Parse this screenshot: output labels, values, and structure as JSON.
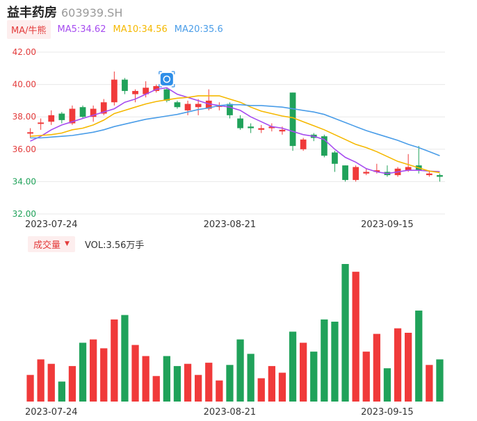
{
  "header": {
    "stock_name": "益丰药房",
    "stock_code": "603939.SH"
  },
  "ma_legend": {
    "badge_label": "MA/牛熊",
    "items": [
      {
        "label": "MA5:34.62",
        "color": "#a64cf0"
      },
      {
        "label": "MA10:34.56",
        "color": "#f5b800"
      },
      {
        "label": "MA20:35.6",
        "color": "#4a9de8"
      }
    ]
  },
  "volume_legend": {
    "badge_label": "成交量",
    "value_label": "VOL:3.56万手"
  },
  "colors": {
    "up": "#f03a3a",
    "down": "#20a25a",
    "grid": "#e8e8e8",
    "axis_text_up": "#e33b3b",
    "axis_text_down": "#20a25a"
  },
  "marker_icon": "flag-icon",
  "chart_data": {
    "type": "candlestick",
    "yticks": [
      "42.00",
      "40.00",
      "38.00",
      "36.00",
      "34.00",
      "32.00"
    ],
    "ylim": [
      32,
      42
    ],
    "xticks": [
      {
        "label": "2023-07-24",
        "index": 2
      },
      {
        "label": "2023-08-21",
        "index": 19
      },
      {
        "label": "2023-09-15",
        "index": 34
      }
    ],
    "candles": [
      {
        "o": 37.0,
        "c": 37.05,
        "h": 37.3,
        "l": 36.7
      },
      {
        "o": 37.6,
        "c": 37.65,
        "h": 37.9,
        "l": 37.2
      },
      {
        "o": 37.7,
        "c": 38.1,
        "h": 38.4,
        "l": 37.5
      },
      {
        "o": 38.2,
        "c": 37.8,
        "h": 38.3,
        "l": 37.6
      },
      {
        "o": 37.6,
        "c": 38.5,
        "h": 38.7,
        "l": 37.5
      },
      {
        "o": 38.6,
        "c": 38.0,
        "h": 38.7,
        "l": 37.9
      },
      {
        "o": 38.0,
        "c": 38.5,
        "h": 38.7,
        "l": 37.7
      },
      {
        "o": 38.2,
        "c": 38.9,
        "h": 39.1,
        "l": 38.1
      },
      {
        "o": 38.9,
        "c": 40.3,
        "h": 40.8,
        "l": 38.7
      },
      {
        "o": 40.3,
        "c": 39.6,
        "h": 40.4,
        "l": 39.4
      },
      {
        "o": 39.4,
        "c": 39.6,
        "h": 39.7,
        "l": 38.9
      },
      {
        "o": 39.4,
        "c": 39.8,
        "h": 40.2,
        "l": 39.2
      },
      {
        "o": 39.6,
        "c": 39.9,
        "h": 40.0,
        "l": 39.5
      },
      {
        "o": 39.7,
        "c": 39.0,
        "h": 39.8,
        "l": 38.9
      },
      {
        "o": 38.9,
        "c": 38.6,
        "h": 39.0,
        "l": 38.5
      },
      {
        "o": 38.4,
        "c": 38.8,
        "h": 39.0,
        "l": 38.1
      },
      {
        "o": 38.6,
        "c": 38.8,
        "h": 39.1,
        "l": 38.1
      },
      {
        "o": 38.5,
        "c": 39.0,
        "h": 39.7,
        "l": 38.4
      },
      {
        "o": 38.7,
        "c": 38.7,
        "h": 38.9,
        "l": 38.4
      },
      {
        "o": 38.8,
        "c": 38.1,
        "h": 38.9,
        "l": 37.9
      },
      {
        "o": 37.9,
        "c": 37.3,
        "h": 38.1,
        "l": 37.2
      },
      {
        "o": 37.4,
        "c": 37.3,
        "h": 37.6,
        "l": 37.0
      },
      {
        "o": 37.2,
        "c": 37.3,
        "h": 37.5,
        "l": 37.0
      },
      {
        "o": 37.3,
        "c": 37.4,
        "h": 37.6,
        "l": 37.1
      },
      {
        "o": 37.1,
        "c": 37.2,
        "h": 37.4,
        "l": 36.9
      },
      {
        "o": 39.5,
        "c": 36.2,
        "h": 39.5,
        "l": 35.9
      },
      {
        "o": 36.0,
        "c": 36.6,
        "h": 36.7,
        "l": 35.9
      },
      {
        "o": 36.9,
        "c": 36.7,
        "h": 37.0,
        "l": 36.5
      },
      {
        "o": 36.8,
        "c": 35.6,
        "h": 36.9,
        "l": 35.5
      },
      {
        "o": 35.8,
        "c": 35.1,
        "h": 35.9,
        "l": 34.6
      },
      {
        "o": 35.0,
        "c": 34.1,
        "h": 35.0,
        "l": 34.0
      },
      {
        "o": 34.1,
        "c": 34.9,
        "h": 35.0,
        "l": 34.0
      },
      {
        "o": 34.5,
        "c": 34.6,
        "h": 34.8,
        "l": 34.4
      },
      {
        "o": 34.6,
        "c": 34.7,
        "h": 35.1,
        "l": 34.5
      },
      {
        "o": 34.6,
        "c": 34.4,
        "h": 35.0,
        "l": 34.3
      },
      {
        "o": 34.4,
        "c": 34.8,
        "h": 34.9,
        "l": 34.3
      },
      {
        "o": 34.7,
        "c": 34.9,
        "h": 35.7,
        "l": 34.6
      },
      {
        "o": 35.0,
        "c": 34.7,
        "h": 36.2,
        "l": 34.5
      },
      {
        "o": 34.4,
        "c": 34.5,
        "h": 34.7,
        "l": 34.3
      },
      {
        "o": 34.4,
        "c": 34.3,
        "h": 34.5,
        "l": 34.0
      }
    ],
    "series": [
      {
        "name": "MA5",
        "color": "#a64cf0",
        "values": [
          36.5,
          36.8,
          37.2,
          37.5,
          37.7,
          37.9,
          38.1,
          38.3,
          38.5,
          38.9,
          39.1,
          39.4,
          39.7,
          39.8,
          39.4,
          39.2,
          39.0,
          38.8,
          38.7,
          38.6,
          38.4,
          38.0,
          37.7,
          37.4,
          37.3,
          37.1,
          36.9,
          36.8,
          36.6,
          36.0,
          35.5,
          35.2,
          34.8,
          34.6,
          34.5,
          34.6,
          34.7,
          34.7,
          34.65,
          34.62
        ]
      },
      {
        "name": "MA10",
        "color": "#f5b800",
        "values": [
          36.8,
          36.85,
          36.9,
          37.0,
          37.2,
          37.3,
          37.5,
          37.8,
          38.2,
          38.4,
          38.6,
          38.8,
          38.95,
          39.05,
          39.15,
          39.2,
          39.3,
          39.3,
          39.3,
          39.1,
          38.9,
          38.6,
          38.35,
          38.2,
          38.05,
          37.95,
          37.7,
          37.45,
          37.2,
          36.9,
          36.6,
          36.3,
          36.1,
          35.85,
          35.55,
          35.25,
          35.05,
          34.85,
          34.65,
          34.56
        ]
      },
      {
        "name": "MA20",
        "color": "#4a9de8",
        "values": [
          36.7,
          36.7,
          36.75,
          36.8,
          36.85,
          36.95,
          37.05,
          37.2,
          37.4,
          37.55,
          37.7,
          37.85,
          37.95,
          38.05,
          38.15,
          38.3,
          38.45,
          38.55,
          38.7,
          38.75,
          38.75,
          38.7,
          38.7,
          38.65,
          38.6,
          38.5,
          38.4,
          38.3,
          38.15,
          37.9,
          37.65,
          37.4,
          37.15,
          36.95,
          36.75,
          36.55,
          36.3,
          36.1,
          35.85,
          35.6
        ]
      }
    ],
    "volume": [
      24,
      38,
      34,
      18,
      32,
      53,
      56,
      48,
      74,
      78,
      51,
      41,
      23,
      41,
      32,
      34,
      24,
      35,
      19,
      33,
      56,
      43,
      21,
      32,
      26,
      63,
      53,
      45,
      74,
      72,
      124,
      117,
      45,
      61,
      30,
      66,
      62,
      82,
      33,
      38
    ]
  }
}
